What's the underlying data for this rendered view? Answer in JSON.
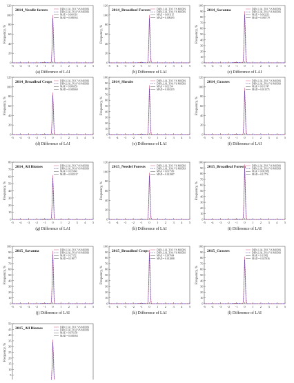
{
  "legend_entries": [
    "DBN_LAI_TOC VS MODIS",
    "DBN_LAI_TOA VS MODIS"
  ],
  "xlabel": "Difference of LAI",
  "ylabel": "Frequency, %",
  "colors": {
    "toc": "#d9779a",
    "toa": "#4f3fb0",
    "axis": "#555555"
  },
  "chart_data": [
    {
      "type": "line",
      "panel": "(a)",
      "title": "2014_Needle forests",
      "caption": "(a) Difference of LAI",
      "xlim": [
        -5,
        5
      ],
      "ylim": [
        0,
        120
      ],
      "xticks": [
        "-5",
        "-4",
        "-3",
        "-2",
        "-1",
        "0",
        "1",
        "2",
        "3",
        "4",
        "5"
      ],
      "yticks": [
        "0",
        "20",
        "40",
        "60",
        "80",
        "100",
        "120"
      ],
      "peak": 100,
      "stats": [
        "MAE = 0.000316",
        "MAD = 0.009563"
      ]
    },
    {
      "type": "line",
      "panel": "(b)",
      "title": "2014_Broadleaf Forests",
      "caption": "(b) Difference of LAI",
      "xlim": [
        -5,
        5
      ],
      "ylim": [
        0,
        120
      ],
      "xticks": [
        "-5",
        "-4",
        "-3",
        "-2",
        "-1",
        "0",
        "1",
        "2",
        "3",
        "4",
        "5"
      ],
      "yticks": [
        "0",
        "20",
        "40",
        "60",
        "80",
        "100",
        "120"
      ],
      "peak": 100,
      "stats": [
        "MAE = 0.001115",
        "MAD = 0.009295"
      ]
    },
    {
      "type": "line",
      "panel": "(c)",
      "title": "2014_Savanna",
      "caption": "(c) Difference of LAI",
      "xlim": [
        -5,
        5
      ],
      "ylim": [
        0,
        100
      ],
      "xticks": [
        "-5",
        "-4",
        "-3",
        "-2",
        "-1",
        "0",
        "1",
        "2",
        "3",
        "4",
        "5"
      ],
      "yticks": [
        "0",
        "10",
        "20",
        "30",
        "40",
        "50",
        "60",
        "70",
        "80",
        "90",
        "100"
      ],
      "peak": 90,
      "stats": [
        "MAE = 0.002213",
        "MAD = 0.005779"
      ]
    },
    {
      "type": "line",
      "panel": "(d)",
      "title": "2014_Broadleaf Crops",
      "caption": "(d) Difference of LAI",
      "xlim": [
        -5,
        5
      ],
      "ylim": [
        0,
        120
      ],
      "xticks": [
        "-5",
        "-4",
        "-3",
        "-2",
        "-1",
        "0",
        "1",
        "2",
        "3",
        "4",
        "5"
      ],
      "yticks": [
        "0",
        "20",
        "40",
        "60",
        "80",
        "100",
        "120"
      ],
      "peak": 88,
      "stats": [
        "MAE = 0.006653",
        "MAD = 0.005069"
      ]
    },
    {
      "type": "line",
      "panel": "(e)",
      "title": "2014_Shrubs",
      "caption": "(e) Difference of LAI",
      "xlim": [
        -5,
        5
      ],
      "ylim": [
        0,
        100
      ],
      "xticks": [
        "-5",
        "-4",
        "-3",
        "-2",
        "-1",
        "0",
        "1",
        "2",
        "3",
        "4",
        "5"
      ],
      "yticks": [
        "0",
        "10",
        "20",
        "30",
        "40",
        "50",
        "60",
        "70",
        "80",
        "90",
        "100"
      ],
      "peak": 86,
      "stats": [
        "MAE = 0.02154",
        "MAD = 0.010255"
      ]
    },
    {
      "type": "line",
      "panel": "(f)",
      "title": "2014_Grasses",
      "caption": "(f) Difference of LAI",
      "xlim": [
        -5,
        5
      ],
      "ylim": [
        0,
        120
      ],
      "xticks": [
        "-5",
        "-4",
        "-3",
        "-2",
        "-1",
        "0",
        "1",
        "2",
        "3",
        "4",
        "5"
      ],
      "yticks": [
        "0",
        "20",
        "40",
        "60",
        "80",
        "100",
        "120"
      ],
      "peak": 98,
      "stats": [
        "MAE = 0.011747",
        "MAD = 0.011575"
      ]
    },
    {
      "type": "line",
      "panel": "(g)",
      "title": "2014_All Biomes",
      "caption": "(g) Difference of LAI",
      "xlim": [
        -5,
        5
      ],
      "ylim": [
        0,
        80
      ],
      "xticks": [
        "-5",
        "-4",
        "-3",
        "-2",
        "-1",
        "0",
        "1",
        "2",
        "3",
        "4",
        "5"
      ],
      "yticks": [
        "0",
        "10",
        "20",
        "30",
        "40",
        "50",
        "60",
        "70",
        "80"
      ],
      "peak": 62,
      "stats": [
        "MAE = 0.035841",
        "MAD = 0.010337"
      ]
    },
    {
      "type": "line",
      "panel": "(h)",
      "title": "2015_Needel Forests",
      "caption": "(h) Difference of LAI",
      "xlim": [
        -5,
        5
      ],
      "ylim": [
        0,
        120
      ],
      "xticks": [
        "-5",
        "-4",
        "-3",
        "-2",
        "-1",
        "0",
        "1",
        "2",
        "3",
        "4",
        "5"
      ],
      "yticks": [
        "0",
        "20",
        "40",
        "60",
        "80",
        "100",
        "120"
      ],
      "peak": 98,
      "stats": [
        "MAE = 0.037599",
        "MAD = 0.012987"
      ]
    },
    {
      "type": "line",
      "panel": "(i)",
      "title": "2015_Broadleaf Forests",
      "caption": "(i) Difference of LAI",
      "xlim": [
        -5,
        5
      ],
      "ylim": [
        0,
        100
      ],
      "xticks": [
        "-5",
        "-4",
        "-3",
        "-2",
        "-1",
        "0",
        "1",
        "2",
        "3",
        "4",
        "5"
      ],
      "yticks": [
        "0",
        "10",
        "20",
        "30",
        "40",
        "50",
        "60",
        "70",
        "80",
        "90",
        "100"
      ],
      "peak": 96,
      "stats": [
        "MAE = 0.082882",
        "MAD = 0.11776"
      ]
    },
    {
      "type": "line",
      "panel": "(j)",
      "title": "2015_Savanna",
      "caption": "(j) Difference of LAI",
      "xlim": [
        -5,
        5
      ],
      "ylim": [
        0,
        100
      ],
      "xticks": [
        "-5",
        "-4",
        "-3",
        "-2",
        "-1",
        "0",
        "1",
        "2",
        "3",
        "4",
        "5"
      ],
      "yticks": [
        "0",
        "10",
        "20",
        "30",
        "40",
        "50",
        "60",
        "70",
        "80",
        "90",
        "100"
      ],
      "peak": 92,
      "stats": [
        "MAE = 0.17152",
        "MAD = 0.19977"
      ]
    },
    {
      "type": "line",
      "panel": "(k)",
      "title": "2015_Broadleaf Crops",
      "caption": "(k) Difference of LAI",
      "xlim": [
        -5,
        5
      ],
      "ylim": [
        0,
        100
      ],
      "xticks": [
        "-5",
        "-4",
        "-3",
        "-2",
        "-1",
        "0",
        "1",
        "2",
        "3",
        "4",
        "5"
      ],
      "yticks": [
        "0",
        "10",
        "20",
        "30",
        "40",
        "50",
        "60",
        "70",
        "80",
        "90",
        "100"
      ],
      "peak": 94,
      "stats": [
        "MAE = 0.397664",
        "MAD = 0.012888"
      ]
    },
    {
      "type": "line",
      "panel": "(l)",
      "title": "2015_Grasses",
      "caption": "(l) Difference of LAI",
      "xlim": [
        -5,
        5
      ],
      "ylim": [
        0,
        100
      ],
      "xticks": [
        "-5",
        "-4",
        "-3",
        "-2",
        "-1",
        "0",
        "1",
        "2",
        "3",
        "4",
        "5"
      ],
      "yticks": [
        "0",
        "10",
        "20",
        "30",
        "40",
        "50",
        "60",
        "70",
        "80",
        "90",
        "100"
      ],
      "peak": 82,
      "stats": [
        "MAE = 0.11982",
        "MAD = 0.027836"
      ]
    },
    {
      "type": "line",
      "panel": "(m)",
      "title": "2015_All Biomes",
      "caption": "(m) Difference of LAI",
      "xlim": [
        -5,
        5
      ],
      "ylim": [
        0,
        50
      ],
      "xticks": [
        "-5",
        "-4",
        "-3",
        "-2",
        "-1",
        "0",
        "1",
        "2",
        "3",
        "4",
        "5"
      ],
      "yticks": [
        "0",
        "5",
        "10",
        "15",
        "20",
        "25",
        "30",
        "35",
        "40",
        "45",
        "50"
      ],
      "peak": 36,
      "stats": [
        "MAE = 0.076159",
        "MAD = 0.039363"
      ]
    }
  ]
}
